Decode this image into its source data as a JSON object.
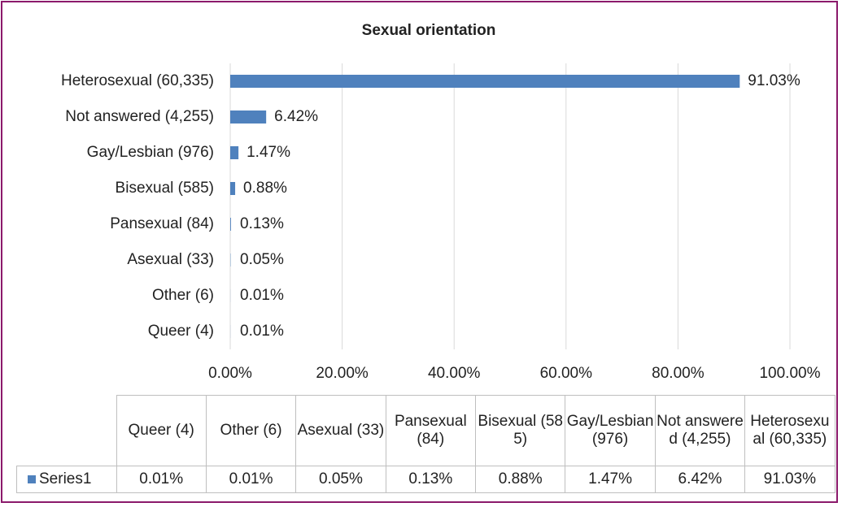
{
  "chart_data": {
    "type": "bar",
    "orientation": "horizontal",
    "title": "Sexual orientation",
    "categories": [
      "Queer (4)",
      "Other (6)",
      "Asexual (33)",
      "Pansexual (84)",
      "Bisexual (585)",
      "Gay/Lesbian (976)",
      "Not answered (4,255)",
      "Heterosexual (60,335)"
    ],
    "series": [
      {
        "name": "Series1",
        "color": "#4f81bd",
        "values": [
          0.01,
          0.01,
          0.05,
          0.13,
          0.88,
          1.47,
          6.42,
          91.03
        ],
        "value_labels": [
          "0.01%",
          "0.01%",
          "0.05%",
          "0.13%",
          "0.88%",
          "1.47%",
          "6.42%",
          "91.03%"
        ]
      }
    ],
    "xlim": [
      0,
      100
    ],
    "xticks": [
      {
        "value": 0,
        "label": "0.00%"
      },
      {
        "value": 20,
        "label": "20.00%"
      },
      {
        "value": 40,
        "label": "40.00%"
      },
      {
        "value": 60,
        "label": "60.00%"
      },
      {
        "value": 80,
        "label": "80.00%"
      },
      {
        "value": 100,
        "label": "100.00%"
      }
    ],
    "grid": true,
    "data_table": true
  }
}
